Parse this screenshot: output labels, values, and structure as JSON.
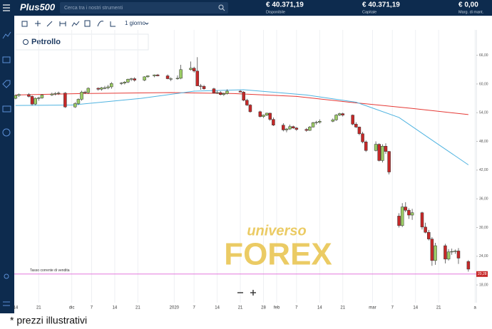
{
  "header": {
    "logo": "Plus500",
    "search_placeholder": "Cerca tra i nostri strumenti",
    "accounts": [
      {
        "value": "€ 40.371,19",
        "label": "Disponibile"
      },
      {
        "value": "€ 40.371,19",
        "label": "Capitale"
      },
      {
        "value": "€ 0,00",
        "label": "Marg. di mant."
      }
    ]
  },
  "toolbar": {
    "period": "1 giorno"
  },
  "instrument": "Petrollo",
  "watermark": [
    "universo",
    "FOREX"
  ],
  "footnote": "* prezzi illustrativi",
  "chart_data": {
    "type": "candlestick",
    "up_color": "#9ccc65",
    "down_color": "#c62828",
    "grid": true,
    "xlim": [
      -0.4,
      139.4
    ],
    "ylim": [
      14.3,
      71.3
    ],
    "xticks": [
      {
        "value": 0,
        "label": "14"
      },
      {
        "value": 7,
        "label": "21"
      },
      {
        "value": 17,
        "label": "dic"
      },
      {
        "value": 23,
        "label": "7"
      },
      {
        "value": 30,
        "label": "14"
      },
      {
        "value": 37,
        "label": "21"
      },
      {
        "value": 48,
        "label": "2020"
      },
      {
        "value": 54,
        "label": "7"
      },
      {
        "value": 61,
        "label": "14"
      },
      {
        "value": 68,
        "label": "21"
      },
      {
        "value": 75,
        "label": "28"
      },
      {
        "value": 79,
        "label": "feb"
      },
      {
        "value": 85,
        "label": "7"
      },
      {
        "value": 92,
        "label": "14"
      },
      {
        "value": 99,
        "label": "21"
      },
      {
        "value": 108,
        "label": "mar"
      },
      {
        "value": 114,
        "label": "7"
      },
      {
        "value": 121,
        "label": "14"
      },
      {
        "value": 128,
        "label": "21"
      },
      {
        "value": 139,
        "label": "a"
      }
    ],
    "yticks": [
      {
        "value": 18,
        "label": "18,00"
      },
      {
        "value": 24,
        "label": "24,00"
      },
      {
        "value": 30,
        "label": "30,00"
      },
      {
        "value": 36,
        "label": "36,00"
      },
      {
        "value": 42,
        "label": "42,00"
      },
      {
        "value": 48,
        "label": "48,00"
      },
      {
        "value": 54,
        "label": "54,00"
      },
      {
        "value": 60,
        "label": "60,00"
      },
      {
        "value": 66,
        "label": "66,00"
      }
    ],
    "candles": [
      [
        0,
        57.0,
        57.8,
        56.8,
        57.6
      ],
      [
        1,
        57.6,
        58.0,
        57.3,
        57.8
      ],
      [
        4,
        57.8,
        58.1,
        57.2,
        57.4
      ],
      [
        5,
        57.4,
        57.6,
        55.5,
        55.8
      ],
      [
        6,
        55.8,
        57.2,
        55.6,
        57.0
      ],
      [
        7,
        57.0,
        57.3,
        56.5,
        57.1
      ],
      [
        8,
        57.1,
        57.9,
        56.9,
        57.7
      ],
      [
        11,
        57.7,
        58.2,
        57.5,
        57.9
      ],
      [
        12,
        57.9,
        58.3,
        57.6,
        58.0
      ],
      [
        13,
        58.0,
        58.4,
        57.7,
        58.1
      ],
      [
        15,
        58.1,
        58.3,
        55.0,
        55.2
      ],
      [
        18,
        55.2,
        56.2,
        55.0,
        55.9
      ],
      [
        19,
        55.9,
        57.0,
        55.6,
        56.8
      ],
      [
        20,
        56.8,
        58.6,
        56.5,
        58.3
      ],
      [
        21,
        58.3,
        58.6,
        57.9,
        58.2
      ],
      [
        22,
        58.2,
        59.3,
        57.9,
        59.1
      ],
      [
        25,
        59.1,
        59.3,
        58.6,
        58.9
      ],
      [
        26,
        58.9,
        59.4,
        58.6,
        59.2
      ],
      [
        27,
        59.2,
        59.6,
        58.9,
        59.2
      ],
      [
        28,
        59.2,
        59.8,
        58.9,
        59.4
      ],
      [
        29,
        59.4,
        60.4,
        59.0,
        60.1
      ],
      [
        32,
        60.1,
        60.4,
        59.8,
        60.2
      ],
      [
        33,
        60.2,
        60.6,
        59.9,
        60.4
      ],
      [
        34,
        60.4,
        61.1,
        60.2,
        61.0
      ],
      [
        35,
        61.0,
        61.3,
        60.6,
        61.1
      ],
      [
        36,
        61.1,
        61.4,
        60.5,
        60.8
      ],
      [
        39,
        60.8,
        61.6,
        60.6,
        61.5
      ],
      [
        40,
        61.5,
        61.8,
        61.3,
        61.7
      ],
      [
        42,
        61.7,
        62.0,
        61.4,
        61.9
      ],
      [
        43,
        61.9,
        62.1,
        61.6,
        61.7
      ],
      [
        46,
        61.7,
        62.0,
        61.0,
        61.1
      ],
      [
        47,
        61.1,
        61.4,
        60.6,
        61.1
      ],
      [
        49,
        61.1,
        61.8,
        60.9,
        61.2
      ],
      [
        50,
        61.2,
        64.0,
        61.0,
        63.0
      ],
      [
        53,
        63.0,
        64.7,
        62.8,
        63.3
      ],
      [
        54,
        63.3,
        63.6,
        62.4,
        62.7
      ],
      [
        55,
        62.7,
        65.6,
        59.6,
        59.6
      ],
      [
        56,
        59.6,
        60.0,
        58.8,
        59.5
      ],
      [
        57,
        59.5,
        59.8,
        58.8,
        59.0
      ],
      [
        60,
        59.0,
        59.2,
        58.0,
        58.1
      ],
      [
        61,
        58.1,
        58.6,
        57.9,
        58.2
      ],
      [
        62,
        58.2,
        58.5,
        57.6,
        57.8
      ],
      [
        63,
        57.8,
        58.2,
        57.5,
        58.0
      ],
      [
        64,
        58.0,
        58.9,
        57.8,
        58.5
      ],
      [
        68,
        58.5,
        58.7,
        58.3,
        58.3
      ],
      [
        69,
        58.3,
        58.5,
        56.4,
        56.6
      ],
      [
        70,
        56.6,
        56.9,
        55.4,
        55.6
      ],
      [
        71,
        55.6,
        55.8,
        54.0,
        54.2
      ],
      [
        74,
        54.2,
        54.4,
        53.0,
        53.2
      ],
      [
        75,
        53.2,
        53.6,
        52.9,
        53.5
      ],
      [
        76,
        53.5,
        54.0,
        53.3,
        53.9
      ],
      [
        77,
        53.9,
        54.0,
        52.3,
        52.6
      ],
      [
        78,
        52.6,
        53.0,
        51.2,
        51.4
      ],
      [
        81,
        51.4,
        51.8,
        50.1,
        50.4
      ],
      [
        82,
        50.4,
        50.8,
        49.9,
        50.6
      ],
      [
        83,
        50.6,
        51.5,
        50.4,
        51.1
      ],
      [
        84,
        51.1,
        51.3,
        50.6,
        50.8
      ],
      [
        85,
        50.8,
        51.0,
        50.2,
        50.5
      ],
      [
        88,
        50.5,
        50.8,
        50.0,
        50.3
      ],
      [
        89,
        50.3,
        51.2,
        50.2,
        51.0
      ],
      [
        90,
        51.0,
        52.1,
        50.9,
        51.9
      ],
      [
        91,
        51.9,
        52.3,
        51.5,
        52.0
      ],
      [
        92,
        52.0,
        52.6,
        51.7,
        52.2
      ],
      [
        96,
        52.2,
        52.8,
        52.0,
        52.5
      ],
      [
        97,
        52.5,
        53.7,
        52.3,
        53.5
      ],
      [
        98,
        53.5,
        54.0,
        53.3,
        53.8
      ],
      [
        99,
        53.8,
        54.0,
        53.2,
        53.5
      ],
      [
        102,
        53.5,
        53.6,
        51.4,
        51.6
      ],
      [
        103,
        51.6,
        52.0,
        50.8,
        51.0
      ],
      [
        104,
        51.0,
        51.1,
        49.3,
        49.6
      ],
      [
        105,
        49.6,
        50.0,
        47.6,
        47.9
      ],
      [
        106,
        47.9,
        48.2,
        45.8,
        46.1
      ],
      [
        109,
        46.1,
        48.0,
        45.9,
        47.4
      ],
      [
        110,
        47.4,
        47.6,
        43.8,
        44.0
      ],
      [
        111,
        44.0,
        47.4,
        43.6,
        47.0
      ],
      [
        112,
        47.0,
        47.6,
        45.4,
        45.9
      ],
      [
        113,
        45.9,
        46.0,
        41.1,
        41.6
      ],
      [
        116,
        32.4,
        33.0,
        30.0,
        30.4
      ],
      [
        117,
        30.4,
        35.1,
        30.1,
        34.3
      ],
      [
        118,
        34.3,
        35.3,
        33.2,
        33.6
      ],
      [
        119,
        33.6,
        34.0,
        31.8,
        32.6
      ],
      [
        120,
        32.6,
        33.9,
        31.6,
        33.1
      ],
      [
        123,
        33.1,
        33.3,
        29.6,
        30.1
      ],
      [
        124,
        30.1,
        31.0,
        28.8,
        29.0
      ],
      [
        125,
        29.0,
        29.5,
        27.3,
        27.6
      ],
      [
        126,
        27.6,
        28.0,
        22.0,
        23.1
      ],
      [
        127,
        23.1,
        26.8,
        22.2,
        26.2
      ],
      [
        130,
        26.2,
        26.6,
        22.5,
        23.4
      ],
      [
        131,
        23.4,
        25.5,
        23.1,
        24.9
      ],
      [
        132,
        24.9,
        25.6,
        24.3,
        25.0
      ],
      [
        133,
        25.0,
        25.4,
        24.5,
        25.1
      ],
      [
        134,
        25.1,
        25.7,
        22.4,
        23.6
      ],
      [
        137,
        22.9,
        23.2,
        20.8,
        21.3
      ]
    ],
    "series": [
      {
        "color": "#e53935",
        "x": [
          0,
          20,
          47,
          66,
          85,
          101,
          120,
          137
        ],
        "values": [
          57.7,
          58.0,
          58.2,
          58.0,
          57.4,
          56.2,
          54.9,
          53.6
        ]
      },
      {
        "color": "#4fb3e0",
        "x": [
          0,
          17,
          38,
          54,
          69,
          88,
          103,
          116,
          127,
          137
        ],
        "values": [
          55.5,
          55.6,
          57.0,
          58.5,
          58.8,
          57.7,
          56.2,
          53.0,
          47.8,
          43.1
        ]
      }
    ],
    "current_price": {
      "value": 20.28,
      "label": "20,28",
      "caption": "Tasso corrente di vendita",
      "color": "#e066d8"
    }
  }
}
